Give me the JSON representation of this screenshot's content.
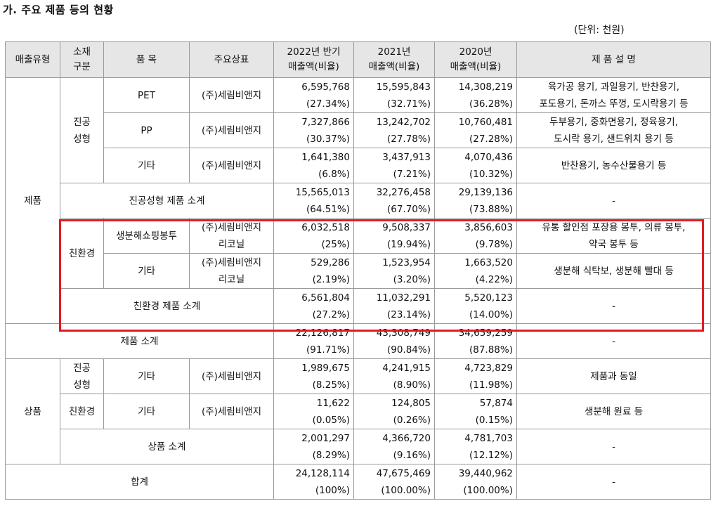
{
  "title": "가. 주요 제품 등의 현황",
  "unit": "(단위: 천원)",
  "headers": {
    "type": "매출유형",
    "material": [
      "소재",
      "구분"
    ],
    "item": "품 목",
    "brand": "주요상표",
    "y2022": [
      "2022년 반기",
      "매출액(비율)"
    ],
    "y2021": [
      "2021년",
      "매출액(비율)"
    ],
    "y2020": [
      "2020년",
      "매출액(비율)"
    ],
    "desc": "제 품 설 명"
  },
  "labels": {
    "product": "제품",
    "goods": "상품",
    "vacuum": [
      "진공",
      "성형"
    ],
    "eco": "친환경",
    "vacuum_subtotal": "진공성형 제품 소계",
    "eco_subtotal": "친환경 제품 소계",
    "product_subtotal": "제품 소계",
    "goods_subtotal": "상품 소계",
    "total": "합계",
    "dash": "-"
  },
  "rows": {
    "pet": {
      "item": "PET",
      "brand": [
        "(주)세림비앤지"
      ],
      "v2022": [
        "6,595,768",
        "(27.34%)"
      ],
      "v2021": [
        "15,595,843",
        "(32.71%)"
      ],
      "v2020": [
        "14,308,219",
        "(36.28%)"
      ],
      "desc": [
        "육가공 용기, 과일용기, 반찬용기,",
        "포도용기, 돈까스 뚜껑, 도시락용기 등"
      ]
    },
    "pp": {
      "item": "PP",
      "brand": [
        "(주)세림비앤지"
      ],
      "v2022": [
        "7,327,866",
        "(30.37%)"
      ],
      "v2021": [
        "13,242,702",
        "(27.78%)"
      ],
      "v2020": [
        "10,760,481",
        "(27.28%)"
      ],
      "desc": [
        "두부용기, 중화면용기, 정육용기,",
        "도시락 용기, 샌드위치 용기 등"
      ]
    },
    "vac_etc": {
      "item": "기타",
      "brand": [
        "(주)세림비앤지"
      ],
      "v2022": [
        "1,641,380",
        "(6.8%)"
      ],
      "v2021": [
        "3,437,913",
        "(7.21%)"
      ],
      "v2020": [
        "4,070,436",
        "(10.32%)"
      ],
      "desc": [
        "반찬용기, 농수산물용기 등"
      ]
    },
    "vac_sub": {
      "v2022": [
        "15,565,013",
        "(64.51%)"
      ],
      "v2021": [
        "32,276,458",
        "(67.70%)"
      ],
      "v2020": [
        "29,139,136",
        "(73.88%)"
      ]
    },
    "bag": {
      "item": "생분해쇼핑봉투",
      "brand": [
        "(주)세림비앤지",
        "리코닐"
      ],
      "v2022": [
        "6,032,518",
        "(25%)"
      ],
      "v2021": [
        "9,508,337",
        "(19.94%)"
      ],
      "v2020": [
        "3,856,603",
        "(9.78%)"
      ],
      "desc": [
        "유통 할인점 포장용 봉투, 의류 봉투,",
        "약국 봉투 등"
      ]
    },
    "eco_etc": {
      "item": "기타",
      "brand": [
        "(주)세림비앤지",
        "리코닐"
      ],
      "v2022": [
        "529,286",
        "(2.19%)"
      ],
      "v2021": [
        "1,523,954",
        "(3.20%)"
      ],
      "v2020": [
        "1,663,520",
        "(4.22%)"
      ],
      "desc": [
        "생분해 식탁보, 생분해 빨대 등"
      ]
    },
    "eco_sub": {
      "v2022": [
        "6,561,804",
        "(27.2%)"
      ],
      "v2021": [
        "11,032,291",
        "(23.14%)"
      ],
      "v2020": [
        "5,520,123",
        "(14.00%)"
      ]
    },
    "prod_sub": {
      "v2022": [
        "22,126,817",
        "(91.71%)"
      ],
      "v2021": [
        "43,308,749",
        "(90.84%)"
      ],
      "v2020": [
        "34,659,259",
        "(87.88%)"
      ]
    },
    "goods_vac": {
      "item": "기타",
      "brand": [
        "(주)세림비앤지"
      ],
      "v2022": [
        "1,989,675",
        "(8.25%)"
      ],
      "v2021": [
        "4,241,915",
        "(8.90%)"
      ],
      "v2020": [
        "4,723,829",
        "(11.98%)"
      ],
      "desc": [
        "제품과 동일"
      ]
    },
    "goods_eco": {
      "item": "기타",
      "brand": [
        "(주)세림비앤지"
      ],
      "v2022": [
        "11,622",
        "(0.05%)"
      ],
      "v2021": [
        "124,805",
        "(0.26%)"
      ],
      "v2020": [
        "57,874",
        "(0.15%)"
      ],
      "desc": [
        "생분해 원료 등"
      ]
    },
    "goods_sub": {
      "v2022": [
        "2,001,297",
        "(8.29%)"
      ],
      "v2021": [
        "4,366,720",
        "(9.16%)"
      ],
      "v2020": [
        "4,781,703",
        "(12.12%)"
      ]
    },
    "total": {
      "v2022": [
        "24,128,114",
        "(100%)"
      ],
      "v2021": [
        "47,675,469",
        "(100.00%)"
      ],
      "v2020": [
        "39,440,962",
        "(100.00%)"
      ]
    }
  },
  "highlight_color": "#e01b24"
}
